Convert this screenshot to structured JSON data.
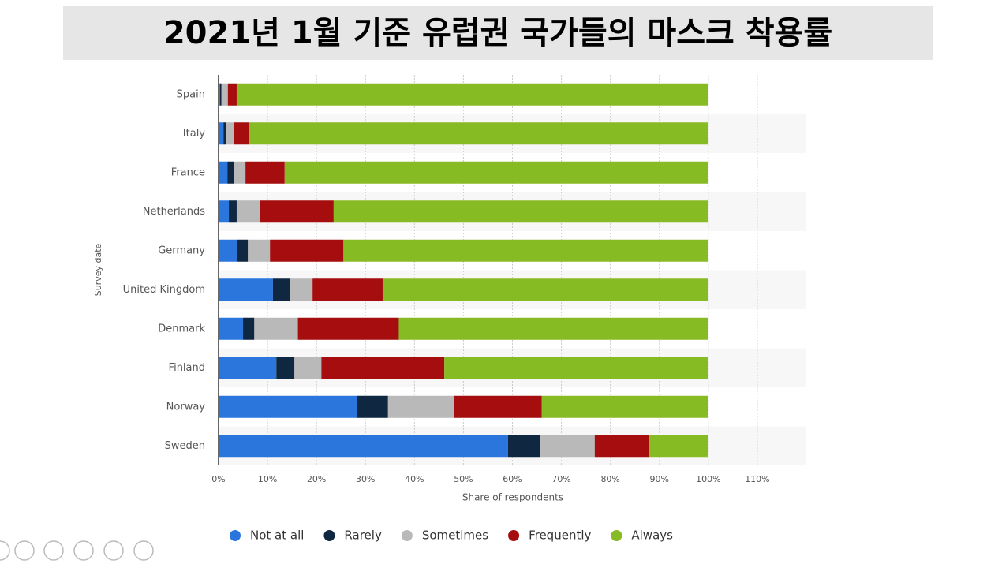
{
  "chart_data": {
    "type": "stacked_barh",
    "title": "2021년 1월 기준 유럽권 국가들의 마스크 착용률",
    "x_label": "Share of respondents",
    "y_label": "Survey date",
    "categories": [
      "Spain",
      "Italy",
      "France",
      "Netherlands",
      "Germany",
      "United Kingdom",
      "Denmark",
      "Finland",
      "Norway",
      "Sweden"
    ],
    "series": [
      {
        "name": "Not at all",
        "color": "#2a76dd",
        "values": [
          0.3,
          1.0,
          1.8,
          2.1,
          3.7,
          11.1,
          5.0,
          11.8,
          28.2,
          59.1
        ]
      },
      {
        "name": "Rarely",
        "color": "#0f2740",
        "values": [
          0.3,
          0.5,
          1.4,
          1.6,
          2.3,
          3.4,
          2.3,
          3.7,
          6.4,
          6.6
        ]
      },
      {
        "name": "Sometimes",
        "color": "#b9b9b9",
        "values": [
          1.3,
          1.6,
          2.3,
          4.7,
          4.5,
          4.7,
          8.9,
          5.5,
          13.4,
          11.1
        ]
      },
      {
        "name": "Frequently",
        "color": "#a50d0e",
        "values": [
          1.8,
          3.1,
          8.0,
          15.1,
          15.0,
          14.3,
          20.6,
          25.1,
          18.0,
          11.1
        ]
      },
      {
        "name": "Always",
        "color": "#87bb24",
        "values": [
          96.3,
          93.8,
          86.5,
          76.5,
          74.5,
          66.5,
          63.2,
          53.9,
          34.0,
          12.1
        ]
      }
    ],
    "xlim": [
      0,
      120
    ],
    "xticks": [
      {
        "value": 0,
        "label": "0%"
      },
      {
        "value": 10,
        "label": "10%"
      },
      {
        "value": 20,
        "label": "20%"
      },
      {
        "value": 30,
        "label": "30%"
      },
      {
        "value": 40,
        "label": "40%"
      },
      {
        "value": 50,
        "label": "50%"
      },
      {
        "value": 60,
        "label": "60%"
      },
      {
        "value": 70,
        "label": "70%"
      },
      {
        "value": 80,
        "label": "80%"
      },
      {
        "value": 90,
        "label": "90%"
      },
      {
        "value": 100,
        "label": "100%"
      },
      {
        "value": 110,
        "label": "110%"
      }
    ],
    "grid": true,
    "legend": "bottom"
  }
}
